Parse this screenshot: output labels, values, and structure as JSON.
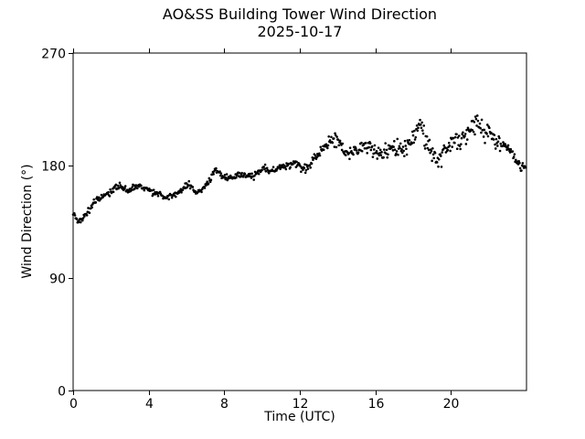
{
  "chart_data": {
    "type": "scatter",
    "title": "AO&SS Building Tower Wind Direction",
    "subtitle": "2025-10-17",
    "xlabel": "Time (UTC)",
    "ylabel": "Wind Direction (°)",
    "xlim": [
      0,
      24
    ],
    "ylim": [
      0,
      270
    ],
    "xticks": [
      0,
      4,
      8,
      12,
      16,
      20
    ],
    "yticks": [
      0,
      90,
      180,
      270
    ],
    "grid": false,
    "legend": "none",
    "marker_color": "#000000",
    "background_color": "#ffffff",
    "marker_size_px": 1.3,
    "sample_interval_hours": 0.033333,
    "scatter_spread_deg": [
      [
        12,
        2.2
      ],
      [
        13.5,
        3.0
      ],
      [
        17,
        4.5
      ],
      [
        22,
        6.5
      ],
      [
        23,
        4.2
      ],
      [
        24.2,
        3.0
      ]
    ],
    "series_anchors": [
      [
        0.0,
        142
      ],
      [
        0.15,
        138
      ],
      [
        0.3,
        135
      ],
      [
        0.5,
        137
      ],
      [
        0.7,
        141
      ],
      [
        0.9,
        146
      ],
      [
        1.1,
        150
      ],
      [
        1.3,
        153
      ],
      [
        1.5,
        155
      ],
      [
        1.7,
        156
      ],
      [
        1.9,
        158
      ],
      [
        2.1,
        161
      ],
      [
        2.3,
        163
      ],
      [
        2.5,
        163
      ],
      [
        2.7,
        161
      ],
      [
        2.9,
        160
      ],
      [
        3.1,
        162
      ],
      [
        3.3,
        163
      ],
      [
        3.5,
        164
      ],
      [
        3.7,
        163
      ],
      [
        3.9,
        161
      ],
      [
        4.1,
        159
      ],
      [
        4.3,
        158
      ],
      [
        4.5,
        157
      ],
      [
        4.7,
        156
      ],
      [
        4.9,
        155
      ],
      [
        5.1,
        156
      ],
      [
        5.3,
        156
      ],
      [
        5.5,
        157
      ],
      [
        5.7,
        160
      ],
      [
        5.9,
        163
      ],
      [
        6.1,
        165
      ],
      [
        6.3,
        162
      ],
      [
        6.5,
        158
      ],
      [
        6.7,
        159
      ],
      [
        6.9,
        162
      ],
      [
        7.1,
        166
      ],
      [
        7.3,
        170
      ],
      [
        7.5,
        176
      ],
      [
        7.7,
        175
      ],
      [
        7.9,
        172
      ],
      [
        8.1,
        171
      ],
      [
        8.3,
        170
      ],
      [
        8.5,
        171
      ],
      [
        8.7,
        172
      ],
      [
        8.9,
        173
      ],
      [
        9.1,
        172
      ],
      [
        9.3,
        171
      ],
      [
        9.5,
        171
      ],
      [
        9.7,
        173
      ],
      [
        9.9,
        176
      ],
      [
        10.1,
        179
      ],
      [
        10.3,
        176
      ],
      [
        10.5,
        176
      ],
      [
        10.7,
        177
      ],
      [
        10.9,
        178
      ],
      [
        11.1,
        179
      ],
      [
        11.3,
        180
      ],
      [
        11.5,
        181
      ],
      [
        11.7,
        182
      ],
      [
        11.9,
        181
      ],
      [
        12.1,
        178
      ],
      [
        12.3,
        176
      ],
      [
        12.5,
        181
      ],
      [
        12.7,
        185
      ],
      [
        12.9,
        188
      ],
      [
        13.1,
        191
      ],
      [
        13.3,
        194
      ],
      [
        13.5,
        197
      ],
      [
        13.7,
        199
      ],
      [
        13.9,
        198
      ],
      [
        14.1,
        199
      ],
      [
        14.3,
        193
      ],
      [
        14.5,
        188
      ],
      [
        14.7,
        190
      ],
      [
        14.9,
        192
      ],
      [
        15.1,
        192
      ],
      [
        15.3,
        195
      ],
      [
        15.5,
        196
      ],
      [
        15.7,
        194
      ],
      [
        15.9,
        192
      ],
      [
        16.1,
        191
      ],
      [
        16.3,
        189
      ],
      [
        16.5,
        190
      ],
      [
        16.7,
        192
      ],
      [
        16.9,
        194
      ],
      [
        17.1,
        193
      ],
      [
        17.3,
        192
      ],
      [
        17.5,
        194
      ],
      [
        17.7,
        196
      ],
      [
        17.9,
        199
      ],
      [
        18.1,
        204
      ],
      [
        18.3,
        212
      ],
      [
        18.5,
        210
      ],
      [
        18.7,
        198
      ],
      [
        18.9,
        192
      ],
      [
        19.1,
        188
      ],
      [
        19.3,
        184
      ],
      [
        19.5,
        188
      ],
      [
        19.7,
        195
      ],
      [
        19.9,
        198
      ],
      [
        20.1,
        200
      ],
      [
        20.3,
        199
      ],
      [
        20.5,
        200
      ],
      [
        20.7,
        202
      ],
      [
        20.9,
        206
      ],
      [
        21.1,
        212
      ],
      [
        21.3,
        215
      ],
      [
        21.5,
        211
      ],
      [
        21.7,
        208
      ],
      [
        21.9,
        206
      ],
      [
        22.1,
        204
      ],
      [
        22.3,
        200
      ],
      [
        22.5,
        198
      ],
      [
        22.7,
        197
      ],
      [
        22.9,
        197
      ],
      [
        23.1,
        193
      ],
      [
        23.3,
        188
      ],
      [
        23.5,
        183
      ],
      [
        23.7,
        180
      ],
      [
        23.9,
        179
      ],
      [
        23.98,
        184
      ]
    ]
  }
}
